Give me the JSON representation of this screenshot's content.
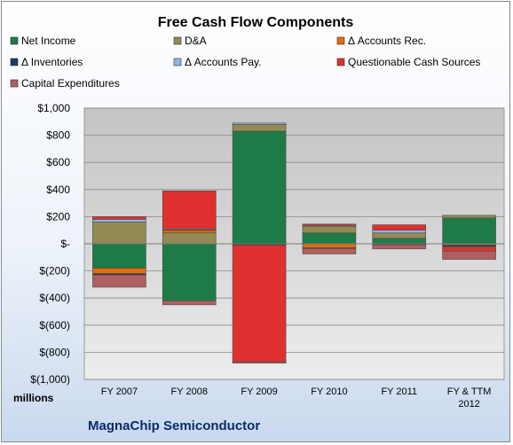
{
  "chart_data": {
    "type": "bar",
    "stacked": true,
    "title": "Free Cash Flow Components",
    "units_label": "millions",
    "footer": "MagnaChip Semiconductor",
    "categories": [
      [
        "FY 2007"
      ],
      [
        "FY 2008"
      ],
      [
        "FY 2009"
      ],
      [
        "FY 2010"
      ],
      [
        "FY 2011"
      ],
      [
        "FY & TTM",
        "2012"
      ]
    ],
    "ylim": [
      -1000,
      1000
    ],
    "yticks": [
      {
        "value": 1000,
        "label": "$1,000"
      },
      {
        "value": 800,
        "label": "$800"
      },
      {
        "value": 600,
        "label": "$600"
      },
      {
        "value": 400,
        "label": "$400"
      },
      {
        "value": 200,
        "label": "$200"
      },
      {
        "value": 0,
        "label": "$-"
      },
      {
        "value": -200,
        "label": "$(200)"
      },
      {
        "value": -400,
        "label": "$(400)"
      },
      {
        "value": -600,
        "label": "$(600)"
      },
      {
        "value": -800,
        "label": "$(800)"
      },
      {
        "value": -1000,
        "label": "$(1,000)"
      }
    ],
    "grid": true,
    "legend_position": "top",
    "series": [
      {
        "name": "Net Income",
        "color": "#1e7b48",
        "values": [
          -180,
          -420,
          830,
          80,
          40,
          190
        ]
      },
      {
        "name": "D&A",
        "color": "#948a54",
        "values": [
          160,
          80,
          50,
          50,
          40,
          20
        ]
      },
      {
        "name": "Δ Accounts Rec.",
        "color": "#e46c0a",
        "values": [
          -40,
          20,
          -5,
          -30,
          -5,
          -10
        ]
      },
      {
        "name": "Δ Inventories",
        "color": "#1f3864",
        "values": [
          -10,
          5,
          -5,
          -5,
          -3,
          -10
        ]
      },
      {
        "name": "Δ Accounts Pay.",
        "color": "#8eb4e3",
        "values": [
          20,
          5,
          10,
          5,
          20,
          -5
        ]
      },
      {
        "name": "Questionable Cash Sources",
        "color": "#e03030",
        "values": [
          20,
          280,
          -860,
          10,
          40,
          -30
        ]
      },
      {
        "name": "Capital Expenditures",
        "color": "#b05f5f",
        "values": [
          -90,
          -30,
          -10,
          -40,
          -30,
          -60
        ]
      }
    ]
  }
}
